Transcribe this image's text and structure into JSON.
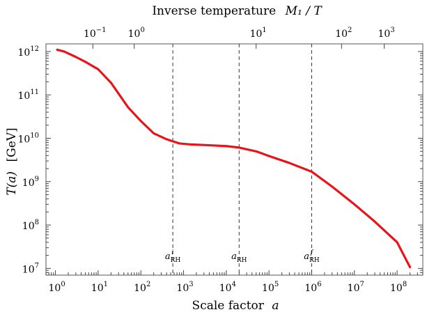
{
  "chart_data": {
    "type": "line",
    "title": "",
    "xlabel": {
      "text": "Scale factor",
      "var": "a"
    },
    "ylabel": {
      "var": "T(a)",
      "unit": "[GeV]"
    },
    "top_axis": {
      "label": "Inverse temperature",
      "var": "M₁ / T"
    },
    "xscale": "log",
    "yscale": "log",
    "xlim": [
      0.6,
      400000000.0
    ],
    "ylim": [
      7000000.0,
      1500000000000.0
    ],
    "grid": false,
    "legend": "none",
    "x_ticks": [
      {
        "value": 1,
        "base": "10",
        "exp": "0"
      },
      {
        "value": 10,
        "base": "10",
        "exp": "1"
      },
      {
        "value": 100,
        "base": "10",
        "exp": "2"
      },
      {
        "value": 1000,
        "base": "10",
        "exp": "3"
      },
      {
        "value": 10000,
        "base": "10",
        "exp": "4"
      },
      {
        "value": 100000,
        "base": "10",
        "exp": "5"
      },
      {
        "value": 1000000,
        "base": "10",
        "exp": "6"
      },
      {
        "value": 10000000,
        "base": "10",
        "exp": "7"
      },
      {
        "value": 100000000,
        "base": "10",
        "exp": "8"
      }
    ],
    "y_ticks": [
      {
        "value": 10000000.0,
        "base": "10",
        "exp": "7"
      },
      {
        "value": 100000000.0,
        "base": "10",
        "exp": "8"
      },
      {
        "value": 1000000000.0,
        "base": "10",
        "exp": "9"
      },
      {
        "value": 10000000000.0,
        "base": "10",
        "exp": "10"
      },
      {
        "value": 100000000000.0,
        "base": "10",
        "exp": "11"
      },
      {
        "value": 1000000000000.0,
        "base": "10",
        "exp": "12"
      }
    ],
    "top_ticks": [
      {
        "at_scale_factor": 7.5,
        "base": "10",
        "exp": "−1"
      },
      {
        "at_scale_factor": 70,
        "base": "10",
        "exp": "0"
      },
      {
        "at_scale_factor": 50000,
        "base": "10",
        "exp": "1"
      },
      {
        "at_scale_factor": 5000000,
        "base": "10",
        "exp": "2"
      },
      {
        "at_scale_factor": 50000000,
        "base": "10",
        "exp": "3"
      }
    ],
    "vlines": [
      {
        "x": 560,
        "label_main": "a",
        "label_sub": "RH",
        "label_sup": "i"
      },
      {
        "x": 20000,
        "label_main": "a",
        "label_sub": "RH",
        "label_sup": ""
      },
      {
        "x": 1000000,
        "label_main": "a",
        "label_sub": "RH",
        "label_sup": "f"
      }
    ],
    "series": [
      {
        "color": "#e8141a",
        "x": [
          1.1,
          1.6,
          3,
          5,
          10,
          20,
          50,
          100,
          200,
          400,
          560,
          800,
          1500,
          3000,
          10000,
          20000,
          50000,
          100000,
          300000,
          1000000,
          3000000,
          10000000,
          30000000,
          100000000,
          200000000
        ],
        "y": [
          1100000000000.0,
          1000000000000.0,
          750000000000.0,
          580000000000.0,
          390000000000.0,
          190000000000.0,
          52000000000.0,
          25000000000.0,
          13000000000.0,
          9500000000.0,
          8500000000.0,
          7600000000.0,
          7200000000.0,
          7000000000.0,
          6600000000.0,
          6100000000.0,
          5000000000.0,
          3900000000.0,
          2700000000.0,
          1700000000.0,
          770000000.0,
          300000000.0,
          120000000.0,
          40000000.0,
          10700000.0
        ]
      }
    ]
  }
}
